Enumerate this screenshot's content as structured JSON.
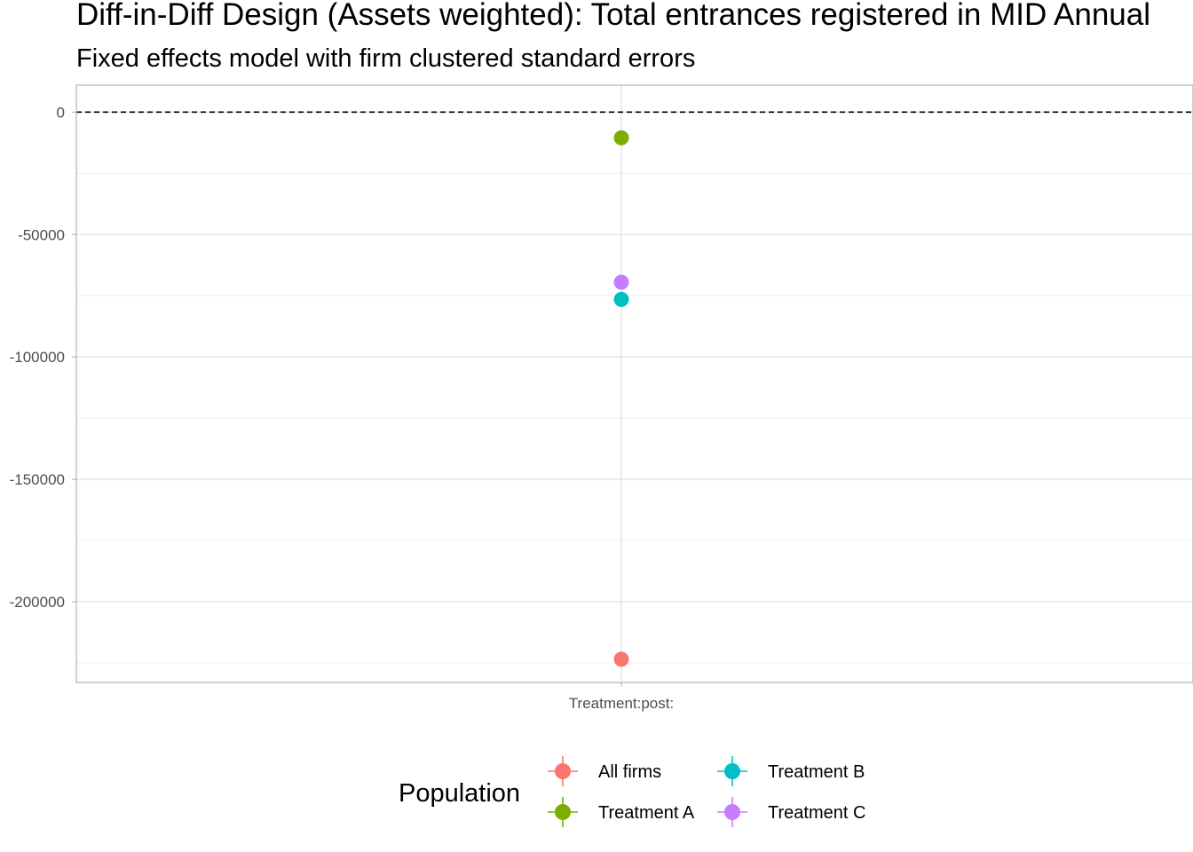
{
  "chart_data": {
    "type": "scatter",
    "title": "Diff-in-Diff Design (Assets weighted): Total entrances registered in MID Annual",
    "subtitle": "Fixed effects model with firm clustered standard errors",
    "xlabel": "",
    "ylabel": "",
    "categories": [
      "Treatment:post:"
    ],
    "ylim": [
      -233000,
      11000
    ],
    "y_ticks": [
      0,
      -50000,
      -100000,
      -150000,
      -200000
    ],
    "y_tick_labels": [
      "0",
      "-50000",
      "-100000",
      "-150000",
      "-200000"
    ],
    "reference_line": {
      "y": 0,
      "style": "dashed",
      "color": "#000000"
    },
    "grid": true,
    "legend": {
      "title": "Population",
      "placement": "bottom",
      "columns": 2
    },
    "series": [
      {
        "name": "All firms",
        "color": "#F8766D",
        "x": "Treatment:post:",
        "y": -223500,
        "ci": [
          -226000,
          -221000
        ]
      },
      {
        "name": "Treatment A",
        "color": "#7CAE00",
        "x": "Treatment:post:",
        "y": -10500,
        "ci": [
          -12000,
          -9000
        ]
      },
      {
        "name": "Treatment B",
        "color": "#00BFC4",
        "x": "Treatment:post:",
        "y": -76500,
        "ci": [
          -78000,
          -75000
        ]
      },
      {
        "name": "Treatment C",
        "color": "#C77CFF",
        "x": "Treatment:post:",
        "y": -69500,
        "ci": [
          -71000,
          -68000
        ]
      }
    ]
  }
}
